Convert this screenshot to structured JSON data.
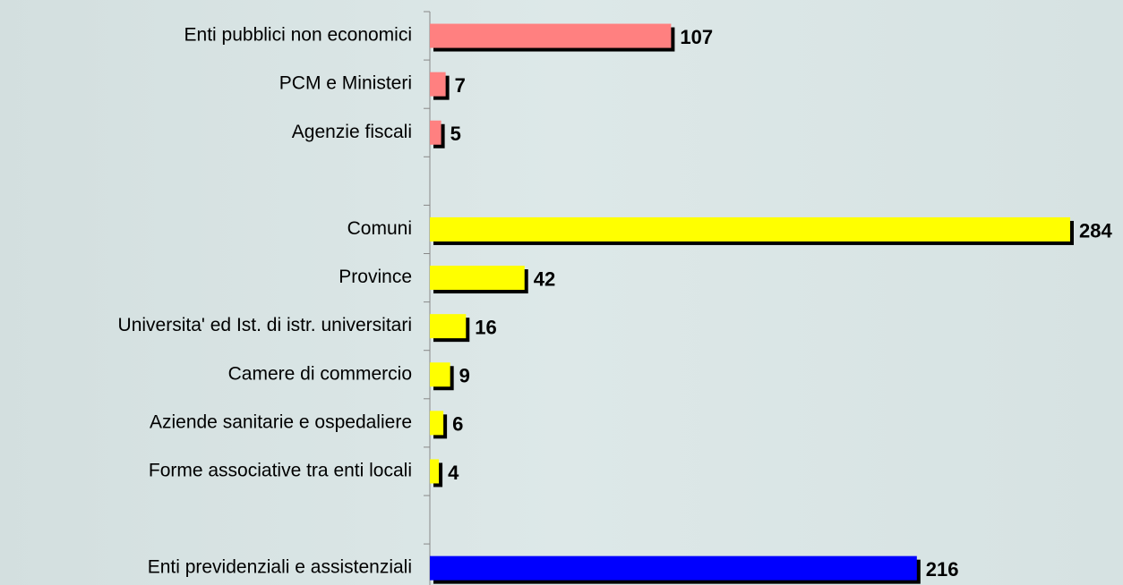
{
  "chart_data": {
    "type": "bar",
    "orientation": "horizontal",
    "categories": [
      "Enti pubblici non economici",
      "PCM e Ministeri",
      "Agenzie fiscali",
      null,
      "Comuni",
      "Province",
      "Universita' ed Ist. di istr. universitari",
      "Camere di commercio",
      "Aziende sanitarie e ospedaliere",
      "Forme associative tra enti locali",
      null,
      "Enti previdenziali e assistenziali"
    ],
    "values": [
      107,
      7,
      5,
      null,
      284,
      42,
      16,
      9,
      6,
      4,
      null,
      216
    ],
    "colors": [
      "#ff8080",
      "#ff8080",
      "#ff8080",
      null,
      "#ffff00",
      "#ffff00",
      "#ffff00",
      "#ffff00",
      "#ffff00",
      "#ffff00",
      null,
      "#0000ff"
    ]
  }
}
